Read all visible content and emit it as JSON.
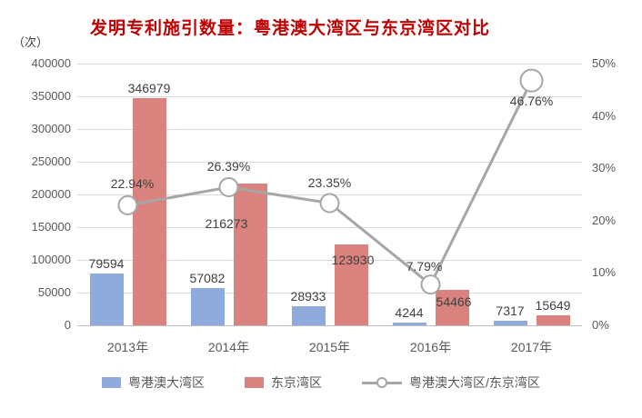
{
  "chart_data": {
    "type": "bar",
    "title": "发明专利施引数量：粤港澳大湾区与东京湾区对比",
    "unit_label": "（次）",
    "categories": [
      "2013年",
      "2014年",
      "2015年",
      "2016年",
      "2017年"
    ],
    "series": [
      {
        "key": "gba",
        "name": "粤港澳大湾区",
        "type": "bar",
        "axis": "left",
        "color": "#8faadc",
        "values": [
          79594,
          57082,
          28933,
          4244,
          7317
        ]
      },
      {
        "key": "tokyo",
        "name": "东京湾区",
        "type": "bar",
        "axis": "left",
        "color": "#d9827e",
        "values": [
          346979,
          216273,
          123930,
          54466,
          15649
        ]
      },
      {
        "key": "ratio",
        "name": "粤港澳大湾区/东京湾区",
        "type": "line",
        "axis": "right",
        "color": "#a6a6a6",
        "values": [
          22.94,
          26.39,
          23.35,
          7.79,
          46.76
        ],
        "labels": [
          "22.94%",
          "26.39%",
          "23.35%",
          "7.79%",
          "46.76%"
        ]
      }
    ],
    "left_axis": {
      "min": 0,
      "max": 400000,
      "ticks": [
        "0",
        "50000",
        "100000",
        "150000",
        "200000",
        "250000",
        "300000",
        "350000",
        "400000"
      ]
    },
    "right_axis": {
      "min": 0,
      "max": 50,
      "ticks": [
        "0%",
        "10%",
        "20%",
        "30%",
        "40%",
        "50%"
      ]
    },
    "legend": {
      "position": "bottom",
      "items": [
        "粤港澳大湾区",
        "东京湾区",
        "粤港澳大湾区/东京湾区"
      ]
    },
    "colors": {
      "title": "#c00000",
      "gridline": "#d9d9d9",
      "axis_line": "#bfbfbf",
      "tick_text": "#595959",
      "value_text": "#404040"
    }
  }
}
